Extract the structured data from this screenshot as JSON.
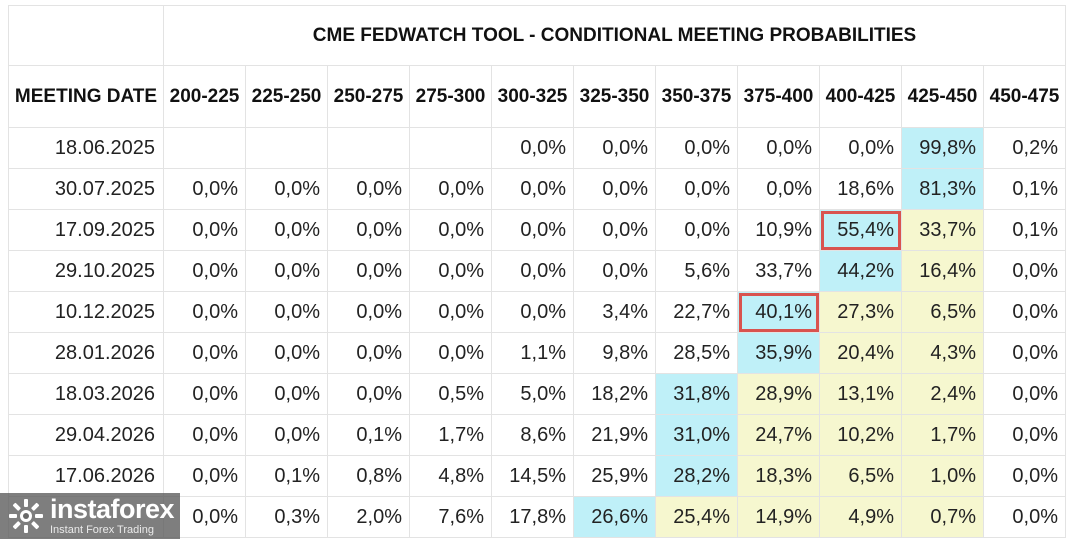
{
  "title": "CME FEDWATCH TOOL - CONDITIONAL MEETING PROBABILITIES",
  "header": {
    "meeting_date": "MEETING DATE",
    "ranges": [
      "200-225",
      "225-250",
      "250-275",
      "275-300",
      "300-325",
      "325-350",
      "350-375",
      "375-400",
      "400-425",
      "425-450",
      "450-475"
    ]
  },
  "rows": [
    {
      "date": "18.06.2025",
      "values": [
        "",
        "",
        "",
        "",
        "0,0%",
        "0,0%",
        "0,0%",
        "0,0%",
        "0,0%",
        "99,8%",
        "0,2%"
      ]
    },
    {
      "date": "30.07.2025",
      "values": [
        "0,0%",
        "0,0%",
        "0,0%",
        "0,0%",
        "0,0%",
        "0,0%",
        "0,0%",
        "0,0%",
        "18,6%",
        "81,3%",
        "0,1%"
      ]
    },
    {
      "date": "17.09.2025",
      "values": [
        "0,0%",
        "0,0%",
        "0,0%",
        "0,0%",
        "0,0%",
        "0,0%",
        "0,0%",
        "10,9%",
        "55,4%",
        "33,7%",
        "0,1%"
      ]
    },
    {
      "date": "29.10.2025",
      "values": [
        "0,0%",
        "0,0%",
        "0,0%",
        "0,0%",
        "0,0%",
        "0,0%",
        "5,6%",
        "33,7%",
        "44,2%",
        "16,4%",
        "0,0%"
      ]
    },
    {
      "date": "10.12.2025",
      "values": [
        "0,0%",
        "0,0%",
        "0,0%",
        "0,0%",
        "0,0%",
        "3,4%",
        "22,7%",
        "40,1%",
        "27,3%",
        "6,5%",
        "0,0%"
      ]
    },
    {
      "date": "28.01.2026",
      "values": [
        "0,0%",
        "0,0%",
        "0,0%",
        "0,0%",
        "1,1%",
        "9,8%",
        "28,5%",
        "35,9%",
        "20,4%",
        "4,3%",
        "0,0%"
      ]
    },
    {
      "date": "18.03.2026",
      "values": [
        "0,0%",
        "0,0%",
        "0,0%",
        "0,5%",
        "5,0%",
        "18,2%",
        "31,8%",
        "28,9%",
        "13,1%",
        "2,4%",
        "0,0%"
      ]
    },
    {
      "date": "29.04.2026",
      "values": [
        "0,0%",
        "0,0%",
        "0,1%",
        "1,7%",
        "8,6%",
        "21,9%",
        "31,0%",
        "24,7%",
        "10,2%",
        "1,7%",
        "0,0%"
      ]
    },
    {
      "date": "17.06.2026",
      "values": [
        "0,0%",
        "0,1%",
        "0,8%",
        "4,8%",
        "14,5%",
        "25,9%",
        "28,2%",
        "18,3%",
        "6,5%",
        "1,0%",
        "0,0%"
      ]
    },
    {
      "date": "",
      "values": [
        "0,0%",
        "0,3%",
        "2,0%",
        "7,6%",
        "17,8%",
        "26,6%",
        "25,4%",
        "14,9%",
        "4,9%",
        "0,7%",
        "0,0%"
      ]
    }
  ],
  "cell_styles": {
    "0": {
      "9": "blue"
    },
    "1": {
      "9": "blue"
    },
    "2": {
      "8": "blue",
      "9": "yellow"
    },
    "3": {
      "8": "blue",
      "9": "yellow"
    },
    "4": {
      "7": "blue",
      "8": "yellow",
      "9": "yellow"
    },
    "5": {
      "7": "blue",
      "8": "yellow",
      "9": "yellow"
    },
    "6": {
      "6": "blue",
      "7": "yellow",
      "8": "yellow",
      "9": "yellow"
    },
    "7": {
      "6": "blue",
      "7": "yellow",
      "8": "yellow",
      "9": "yellow"
    },
    "8": {
      "6": "blue",
      "7": "yellow",
      "8": "yellow",
      "9": "yellow"
    },
    "9": {
      "5": "blue",
      "6": "yellow",
      "7": "yellow",
      "8": "yellow",
      "9": "yellow"
    }
  },
  "highlighted_cells": [
    {
      "row": 2,
      "col": 8
    },
    {
      "row": 4,
      "col": 7
    }
  ],
  "colors": {
    "blue": "#bff0f8",
    "yellow": "#f6f7cf",
    "highlight_border": "#d9534f"
  },
  "watermark": {
    "name": "instaforex",
    "tagline": "Instant Forex Trading",
    "icon": "instaforex-logo-icon"
  }
}
